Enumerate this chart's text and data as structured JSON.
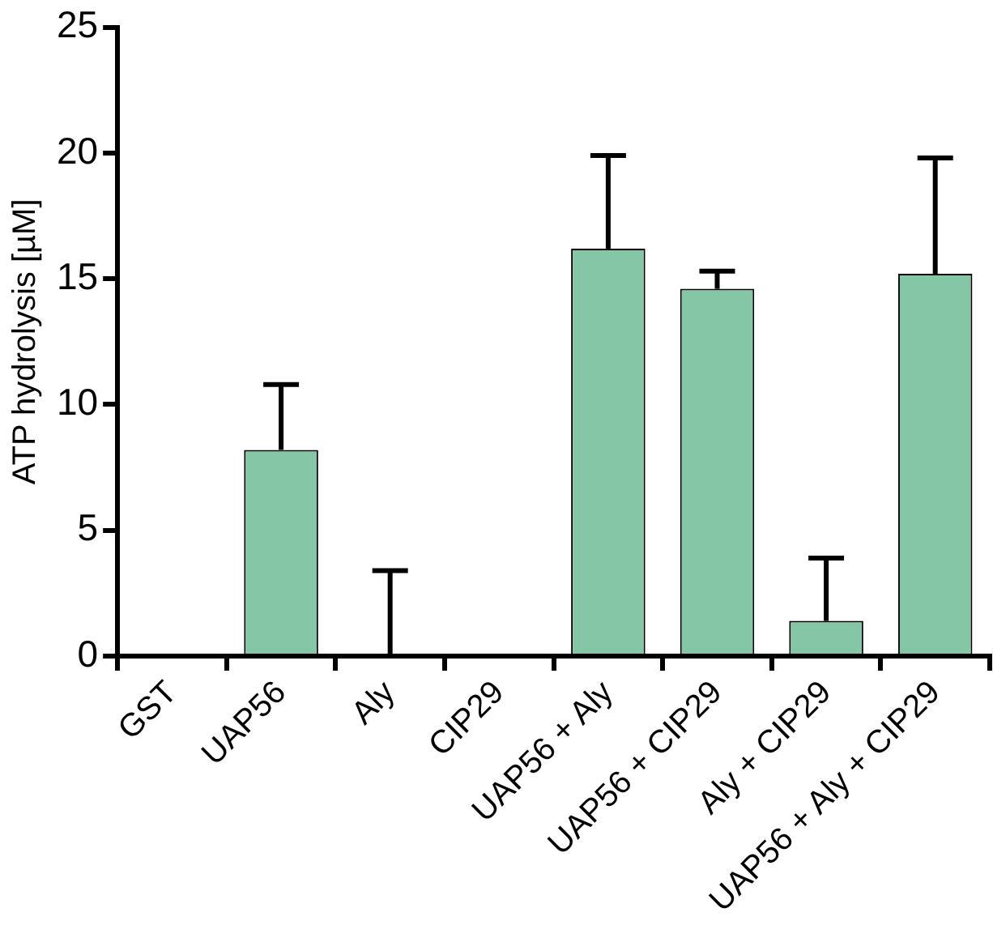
{
  "chart_data": {
    "type": "bar",
    "ylabel": "ATP hydrolysis [µM]",
    "categories": [
      "GST",
      "UAP56",
      "Aly",
      "CIP29",
      "UAP56 + Aly",
      "UAP56 + CIP29",
      "Aly + CIP29",
      "UAP56 + Aly + CIP29"
    ],
    "values": [
      0,
      8.2,
      0,
      0,
      16.2,
      14.6,
      1.4,
      15.2
    ],
    "errors": [
      null,
      [
        8.2,
        10.8
      ],
      [
        0,
        3.4
      ],
      null,
      [
        16.2,
        19.9
      ],
      [
        14.6,
        15.3
      ],
      [
        1.4,
        3.9
      ],
      [
        15.2,
        19.8
      ]
    ],
    "color": "#85c6a7",
    "ylim": [
      0,
      25
    ],
    "yticks": [
      0,
      5,
      10,
      15,
      20,
      25
    ],
    "grid": false,
    "legend": false
  }
}
